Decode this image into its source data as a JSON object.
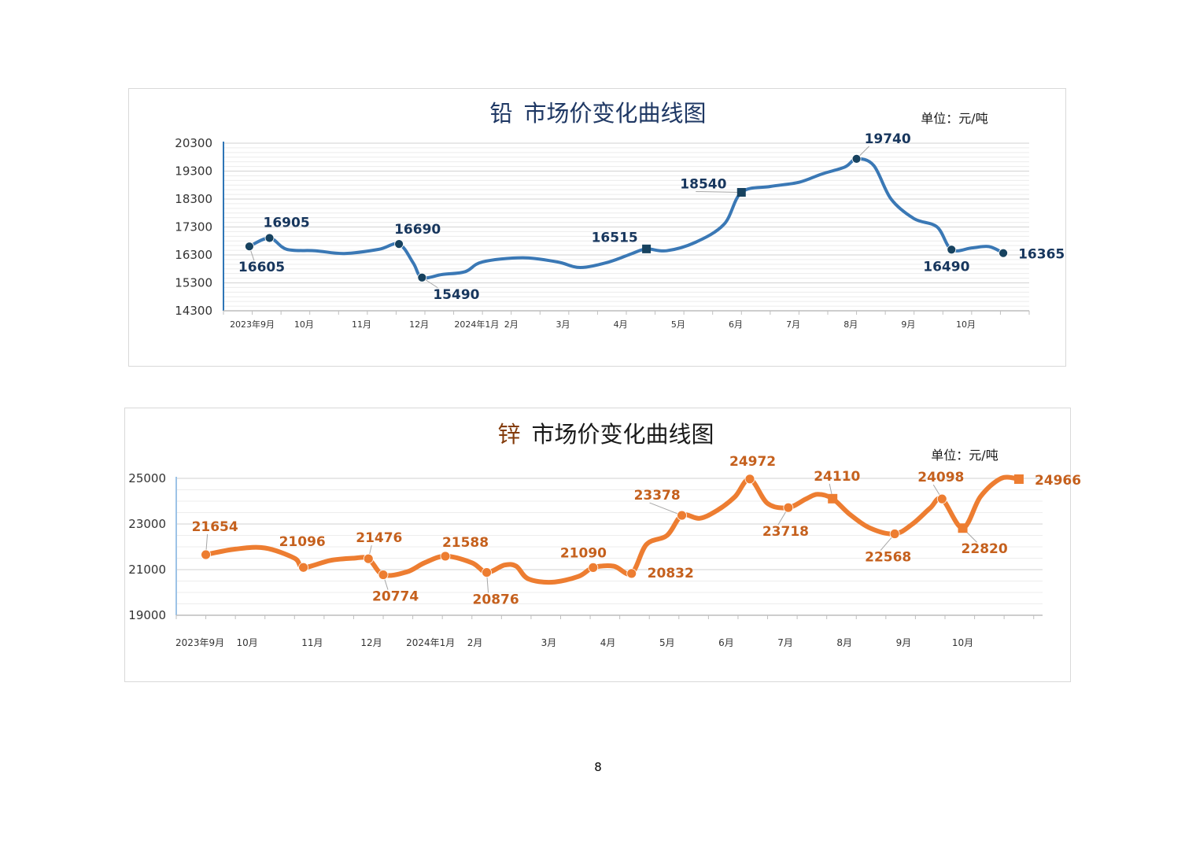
{
  "page": {
    "number": "8"
  },
  "charts": [
    {
      "id": "lead",
      "title_metal": "铅",
      "title_rest": "市场价变化曲线图",
      "unit": "单位：元/吨",
      "color": "#3a78b5",
      "marker_color": "#17425f",
      "label_color": "#17365d",
      "title_metal_color": "#1f3864",
      "title_color": "#1f3864"
    },
    {
      "id": "zinc",
      "title_metal": "锌",
      "title_rest": "市场价变化曲线图",
      "unit": "单位：元/吨",
      "color": "#ed7d31",
      "marker_color": "#ed7d31",
      "label_color": "#c5601d",
      "title_metal_color": "#843c0c",
      "title_color": "#1a1a1a"
    }
  ],
  "chart_data": [
    {
      "type": "line",
      "title": "铅 市场价变化曲线图",
      "unit": "单位：元/吨",
      "ylim": [
        14300,
        20300
      ],
      "yticks": [
        14300,
        15300,
        16300,
        17300,
        18300,
        19300,
        20300
      ],
      "xlim": [
        0,
        14.0
      ],
      "x_tick_labels": [
        {
          "label": "2023年9月",
          "x": 0.5
        },
        {
          "label": "10月",
          "x": 1.4
        },
        {
          "label": "11月",
          "x": 2.4
        },
        {
          "label": "12月",
          "x": 3.4
        },
        {
          "label": "2024年1月",
          "x": 4.4
        },
        {
          "label": "2月",
          "x": 5.0
        },
        {
          "label": "3月",
          "x": 5.9
        },
        {
          "label": "4月",
          "x": 6.9
        },
        {
          "label": "5月",
          "x": 7.9
        },
        {
          "label": "6月",
          "x": 8.9
        },
        {
          "label": "7月",
          "x": 9.9
        },
        {
          "label": "8月",
          "x": 10.9
        },
        {
          "label": "9月",
          "x": 11.9
        },
        {
          "label": "10月",
          "x": 12.9
        }
      ],
      "grid": true,
      "legend": "none",
      "series": [
        {
          "curve": [
            [
              0.45,
              16605
            ],
            [
              0.8,
              16905
            ],
            [
              1.1,
              16500
            ],
            [
              1.6,
              16450
            ],
            [
              2.1,
              16350
            ],
            [
              2.7,
              16500
            ],
            [
              3.05,
              16690
            ],
            [
              3.3,
              16000
            ],
            [
              3.45,
              15490
            ],
            [
              3.8,
              15600
            ],
            [
              4.2,
              15700
            ],
            [
              4.5,
              16050
            ],
            [
              5.2,
              16200
            ],
            [
              5.8,
              16050
            ],
            [
              6.2,
              15850
            ],
            [
              6.7,
              16050
            ],
            [
              7.1,
              16350
            ],
            [
              7.35,
              16515
            ],
            [
              7.7,
              16450
            ],
            [
              8.2,
              16750
            ],
            [
              8.7,
              17400
            ],
            [
              9.0,
              18540
            ],
            [
              9.5,
              18750
            ],
            [
              10.0,
              18900
            ],
            [
              10.4,
              19200
            ],
            [
              10.8,
              19450
            ],
            [
              11.0,
              19740
            ],
            [
              11.3,
              19500
            ],
            [
              11.6,
              18300
            ],
            [
              12.0,
              17600
            ],
            [
              12.4,
              17300
            ],
            [
              12.65,
              16490
            ],
            [
              13.0,
              16550
            ],
            [
              13.3,
              16600
            ],
            [
              13.55,
              16365
            ]
          ],
          "points": [
            {
              "x": 0.45,
              "y": 16605,
              "label": "16605",
              "marker": "circle"
            },
            {
              "x": 0.8,
              "y": 16905,
              "label": "16905",
              "marker": "circle"
            },
            {
              "x": 3.05,
              "y": 16690,
              "label": "16690",
              "marker": "circle"
            },
            {
              "x": 3.45,
              "y": 15490,
              "label": "15490",
              "marker": "circle"
            },
            {
              "x": 7.35,
              "y": 16515,
              "label": "16515",
              "marker": "square"
            },
            {
              "x": 9.0,
              "y": 18540,
              "label": "18540",
              "marker": "square"
            },
            {
              "x": 11.0,
              "y": 19740,
              "label": "19740",
              "marker": "circle"
            },
            {
              "x": 12.65,
              "y": 16490,
              "label": "16490",
              "marker": "circle"
            },
            {
              "x": 13.55,
              "y": 16365,
              "label": "16365",
              "marker": "circle"
            }
          ]
        }
      ]
    },
    {
      "type": "line",
      "title": "锌 市场价变化曲线图",
      "unit": "单位：元/吨",
      "ylim": [
        19000,
        25000
      ],
      "yticks": [
        19000,
        21000,
        23000,
        25000
      ],
      "xlim": [
        0,
        14.65
      ],
      "x_tick_labels": [
        {
          "label": "2023年9月",
          "x": 0.4
        },
        {
          "label": "10月",
          "x": 1.2
        },
        {
          "label": "11月",
          "x": 2.3
        },
        {
          "label": "12月",
          "x": 3.3
        },
        {
          "label": "2024年1月",
          "x": 4.3
        },
        {
          "label": "2月",
          "x": 5.05
        },
        {
          "label": "3月",
          "x": 6.3
        },
        {
          "label": "4月",
          "x": 7.3
        },
        {
          "label": "5月",
          "x": 8.3
        },
        {
          "label": "6月",
          "x": 9.3
        },
        {
          "label": "7月",
          "x": 10.3
        },
        {
          "label": "8月",
          "x": 11.3
        },
        {
          "label": "9月",
          "x": 12.3
        },
        {
          "label": "10月",
          "x": 13.3
        }
      ],
      "grid": true,
      "legend": "none",
      "series": [
        {
          "curve": [
            [
              0.5,
              21654
            ],
            [
              1.0,
              21900
            ],
            [
              1.5,
              21950
            ],
            [
              2.0,
              21500
            ],
            [
              2.15,
              21096
            ],
            [
              2.6,
              21400
            ],
            [
              3.0,
              21500
            ],
            [
              3.25,
              21476
            ],
            [
              3.5,
              20774
            ],
            [
              3.9,
              20900
            ],
            [
              4.2,
              21300
            ],
            [
              4.55,
              21588
            ],
            [
              5.0,
              21300
            ],
            [
              5.25,
              20876
            ],
            [
              5.55,
              21200
            ],
            [
              5.75,
              21150
            ],
            [
              5.95,
              20600
            ],
            [
              6.35,
              20450
            ],
            [
              6.8,
              20700
            ],
            [
              7.05,
              21090
            ],
            [
              7.4,
              21150
            ],
            [
              7.7,
              20832
            ],
            [
              7.95,
              22100
            ],
            [
              8.3,
              22500
            ],
            [
              8.55,
              23378
            ],
            [
              8.85,
              23250
            ],
            [
              9.15,
              23600
            ],
            [
              9.45,
              24200
            ],
            [
              9.7,
              24972
            ],
            [
              10.0,
              23900
            ],
            [
              10.35,
              23718
            ],
            [
              10.65,
              24100
            ],
            [
              10.85,
              24300
            ],
            [
              11.1,
              24110
            ],
            [
              11.4,
              23400
            ],
            [
              11.75,
              22800
            ],
            [
              12.15,
              22568
            ],
            [
              12.45,
              23000
            ],
            [
              12.75,
              23700
            ],
            [
              12.95,
              24098
            ],
            [
              13.3,
              22820
            ],
            [
              13.6,
              24200
            ],
            [
              13.95,
              25000
            ],
            [
              14.25,
              24966
            ]
          ],
          "points": [
            {
              "x": 0.5,
              "y": 21654,
              "label": "21654",
              "marker": "circle"
            },
            {
              "x": 2.15,
              "y": 21096,
              "label": "21096",
              "marker": "circle"
            },
            {
              "x": 3.25,
              "y": 21476,
              "label": "21476",
              "marker": "circle"
            },
            {
              "x": 3.5,
              "y": 20774,
              "label": "20774",
              "marker": "circle"
            },
            {
              "x": 4.55,
              "y": 21588,
              "label": "21588",
              "marker": "circle"
            },
            {
              "x": 5.25,
              "y": 20876,
              "label": "20876",
              "marker": "circle"
            },
            {
              "x": 7.05,
              "y": 21090,
              "label": "21090",
              "marker": "circle"
            },
            {
              "x": 7.7,
              "y": 20832,
              "label": "20832",
              "marker": "circle"
            },
            {
              "x": 8.55,
              "y": 23378,
              "label": "23378",
              "marker": "circle"
            },
            {
              "x": 9.7,
              "y": 24972,
              "label": "24972",
              "marker": "circle"
            },
            {
              "x": 10.35,
              "y": 23718,
              "label": "23718",
              "marker": "circle"
            },
            {
              "x": 11.1,
              "y": 24110,
              "label": "24110",
              "marker": "square"
            },
            {
              "x": 12.15,
              "y": 22568,
              "label": "22568",
              "marker": "circle"
            },
            {
              "x": 12.95,
              "y": 24098,
              "label": "24098",
              "marker": "circle"
            },
            {
              "x": 13.3,
              "y": 22820,
              "label": "22820",
              "marker": "square"
            },
            {
              "x": 14.25,
              "y": 24966,
              "label": "24966",
              "marker": "square"
            }
          ]
        }
      ]
    }
  ]
}
